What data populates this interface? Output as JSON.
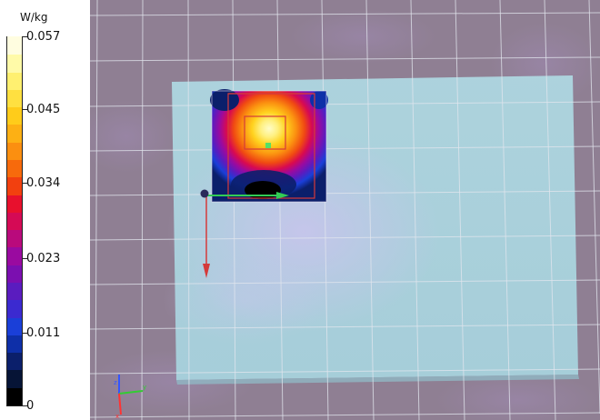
{
  "legend": {
    "unit": "W/kg",
    "labels": [
      {
        "text": "0.057",
        "value": 0.057
      },
      {
        "text": "0.045",
        "value": 0.045
      },
      {
        "text": "0.034",
        "value": 0.034
      },
      {
        "text": "0.023",
        "value": 0.023
      },
      {
        "text": "0.011",
        "value": 0.011
      },
      {
        "text": "0",
        "value": 0
      }
    ],
    "range": [
      0,
      0.057
    ],
    "colors": [
      "#000000",
      "#061436",
      "#0b1f6b",
      "#0e2fa8",
      "#1a3fd8",
      "#3b2ad0",
      "#5a1cbf",
      "#7b0fb0",
      "#9a0aa0",
      "#b90a7c",
      "#d50a55",
      "#e8102d",
      "#f2400f",
      "#f76a0c",
      "#fb8f10",
      "#fdb014",
      "#ffcc1a",
      "#ffe040",
      "#fff070",
      "#fffaa8",
      "#fffde0"
    ]
  },
  "viewport": {
    "background_color": "#8f7f93",
    "phantom_color": "#a9d3dd",
    "axes_indicator": {
      "x_color": "#33cc33",
      "y_color": "#3355ff",
      "z_color": "#ff3333"
    }
  }
}
